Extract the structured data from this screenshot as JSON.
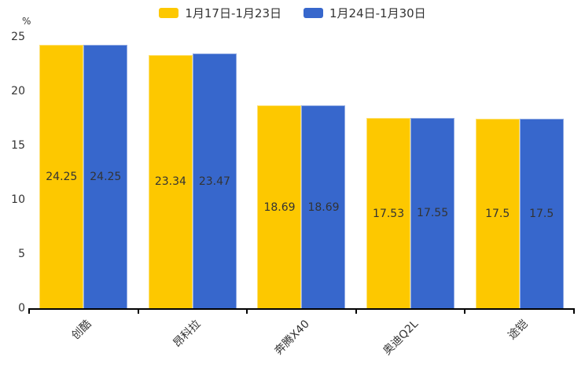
{
  "chart_data": {
    "type": "bar",
    "title": "",
    "categories": [
      "创酷",
      "昂科拉",
      "奔腾X40",
      "奥迪Q2L",
      "途铠"
    ],
    "series": [
      {
        "name": "1月17日-1月23日",
        "color": "#FDC800",
        "values": [
          24.25,
          23.34,
          18.69,
          17.53,
          17.5
        ]
      },
      {
        "name": "1月24日-1月30日",
        "color": "#3767CC",
        "values": [
          24.25,
          23.47,
          18.69,
          17.55,
          17.5
        ]
      }
    ],
    "xlabel": "",
    "ylabel": "%",
    "ylim": [
      0,
      25
    ],
    "yticks": [
      0,
      5,
      10,
      15,
      20,
      25
    ],
    "legend_position": "top",
    "grid": false,
    "value_labels": "inside-center",
    "axis_color": "#000000",
    "text_color": "#333333"
  }
}
